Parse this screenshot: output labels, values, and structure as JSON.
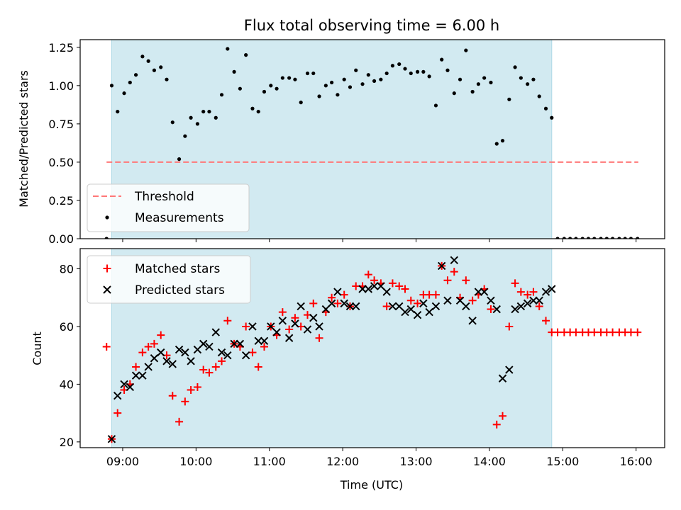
{
  "chart_data": {
    "title": "Flux total observing time = 6.00 h",
    "xlabel": "Time (UTC)",
    "x_ticks": [
      "09:00",
      "10:00",
      "11:00",
      "12:00",
      "13:00",
      "14:00",
      "15:00",
      "16:00"
    ],
    "x_range_hours": [
      8.42,
      16.39
    ],
    "shaded_interval_hours": [
      8.85,
      14.85
    ],
    "colors": {
      "shade": "#add8e6",
      "threshold": "#ff7777",
      "measurements": "#000000",
      "matched": "#ff0000",
      "predicted": "#000000"
    },
    "panels": [
      {
        "type": "scatter",
        "ylabel": "Matched/Predicted stars",
        "ylim": [
          0,
          1.3
        ],
        "y_ticks": [
          0.0,
          0.25,
          0.5,
          0.75,
          1.0,
          1.25
        ],
        "y_tick_labels": [
          "0.00",
          "0.25",
          "0.50",
          "0.75",
          "1.00",
          "1.25"
        ],
        "legend_position": "lower-left",
        "threshold": {
          "name": "Threshold",
          "y": 0.5,
          "x_start": 8.78,
          "x_end": 16.03
        },
        "measurements": {
          "name": "Measurements",
          "x": [
            8.78,
            8.85,
            8.93,
            9.02,
            9.1,
            9.18,
            9.27,
            9.35,
            9.43,
            9.52,
            9.6,
            9.68,
            9.77,
            9.85,
            9.93,
            10.02,
            10.1,
            10.18,
            10.27,
            10.35,
            10.43,
            10.52,
            10.6,
            10.68,
            10.77,
            10.85,
            10.93,
            11.02,
            11.1,
            11.18,
            11.27,
            11.35,
            11.43,
            11.52,
            11.6,
            11.68,
            11.77,
            11.85,
            11.93,
            12.02,
            12.1,
            12.18,
            12.27,
            12.35,
            12.43,
            12.52,
            12.6,
            12.68,
            12.77,
            12.85,
            12.93,
            13.02,
            13.1,
            13.18,
            13.27,
            13.35,
            13.43,
            13.52,
            13.6,
            13.68,
            13.77,
            13.85,
            13.93,
            14.02,
            14.1,
            14.18,
            14.27,
            14.35,
            14.43,
            14.52,
            14.6,
            14.68,
            14.77,
            14.85,
            14.93,
            15.02,
            15.1,
            15.18,
            15.27,
            15.35,
            15.43,
            15.52,
            15.6,
            15.68,
            15.77,
            15.85,
            15.93,
            16.02
          ],
          "y": [
            0.0,
            1.0,
            0.83,
            0.95,
            1.02,
            1.07,
            1.19,
            1.16,
            1.1,
            1.12,
            1.04,
            0.76,
            0.52,
            0.67,
            0.79,
            0.75,
            0.83,
            0.83,
            0.79,
            0.94,
            1.24,
            1.09,
            0.98,
            1.2,
            0.85,
            0.83,
            0.96,
            1.0,
            0.98,
            1.05,
            1.05,
            1.04,
            0.89,
            1.08,
            1.08,
            0.93,
            1.0,
            1.02,
            0.94,
            1.04,
            0.99,
            1.1,
            1.01,
            1.07,
            1.03,
            1.04,
            1.08,
            1.13,
            1.14,
            1.11,
            1.08,
            1.09,
            1.09,
            1.06,
            0.87,
            1.17,
            1.1,
            0.95,
            1.04,
            1.23,
            0.96,
            1.01,
            1.05,
            1.02,
            0.62,
            0.64,
            0.91,
            1.12,
            1.05,
            1.01,
            1.04,
            0.93,
            0.85,
            0.79,
            0.0,
            0.0,
            0.0,
            0.0,
            0.0,
            0.0,
            0.0,
            0.0,
            0.0,
            0.0,
            0.0,
            0.0,
            0.0,
            0.0
          ]
        }
      },
      {
        "type": "scatter",
        "ylabel": "Count",
        "ylim": [
          18,
          87
        ],
        "y_ticks": [
          20,
          40,
          60,
          80
        ],
        "y_tick_labels": [
          "20",
          "40",
          "60",
          "80"
        ],
        "legend_position": "upper-left",
        "series": [
          {
            "name": "Matched stars",
            "marker": "+",
            "x": [
              8.78,
              8.85,
              8.93,
              9.02,
              9.1,
              9.18,
              9.27,
              9.35,
              9.43,
              9.52,
              9.6,
              9.68,
              9.77,
              9.85,
              9.93,
              10.02,
              10.1,
              10.18,
              10.27,
              10.35,
              10.43,
              10.52,
              10.6,
              10.68,
              10.77,
              10.85,
              10.93,
              11.02,
              11.1,
              11.18,
              11.27,
              11.35,
              11.43,
              11.52,
              11.6,
              11.68,
              11.77,
              11.85,
              11.93,
              12.02,
              12.1,
              12.18,
              12.27,
              12.35,
              12.43,
              12.52,
              12.6,
              12.68,
              12.77,
              12.85,
              12.93,
              13.02,
              13.1,
              13.18,
              13.27,
              13.35,
              13.43,
              13.52,
              13.6,
              13.68,
              13.77,
              13.85,
              13.93,
              14.02,
              14.1,
              14.18,
              14.27,
              14.35,
              14.43,
              14.52,
              14.6,
              14.68,
              14.77,
              14.85,
              14.93,
              15.02,
              15.1,
              15.18,
              15.27,
              15.35,
              15.43,
              15.52,
              15.6,
              15.68,
              15.77,
              15.85,
              15.93,
              16.02
            ],
            "y": [
              53,
              21,
              30,
              38,
              40,
              46,
              51,
              53,
              54,
              57,
              50,
              36,
              27,
              34,
              38,
              39,
              45,
              44,
              46,
              48,
              62,
              54,
              53,
              60,
              51,
              46,
              53,
              60,
              57,
              65,
              59,
              63,
              60,
              64,
              68,
              56,
              65,
              70,
              68,
              71,
              67,
              74,
              74,
              78,
              76,
              75,
              67,
              75,
              74,
              73,
              69,
              68,
              71,
              71,
              71,
              81,
              76,
              79,
              70,
              76,
              69,
              71,
              73,
              66,
              26,
              29,
              60,
              75,
              72,
              71,
              72,
              67,
              62,
              58,
              58,
              58,
              58,
              58,
              58,
              58,
              58,
              58,
              58,
              58,
              58,
              58,
              58,
              58
            ]
          },
          {
            "name": "Predicted stars",
            "marker": "x",
            "x": [
              8.85,
              8.93,
              9.02,
              9.1,
              9.18,
              9.27,
              9.35,
              9.43,
              9.52,
              9.6,
              9.68,
              9.77,
              9.85,
              9.93,
              10.02,
              10.1,
              10.18,
              10.27,
              10.35,
              10.43,
              10.52,
              10.6,
              10.68,
              10.77,
              10.85,
              10.93,
              11.02,
              11.1,
              11.18,
              11.27,
              11.35,
              11.43,
              11.52,
              11.6,
              11.68,
              11.77,
              11.85,
              11.93,
              12.02,
              12.1,
              12.18,
              12.27,
              12.35,
              12.43,
              12.52,
              12.6,
              12.68,
              12.77,
              12.85,
              12.93,
              13.02,
              13.1,
              13.18,
              13.27,
              13.35,
              13.43,
              13.52,
              13.6,
              13.68,
              13.77,
              13.85,
              13.93,
              14.02,
              14.1,
              14.18,
              14.27,
              14.35,
              14.43,
              14.52,
              14.6,
              14.68,
              14.77,
              14.85
            ],
            "y": [
              21,
              36,
              40,
              39,
              43,
              43,
              46,
              49,
              51,
              48,
              47,
              52,
              51,
              48,
              52,
              54,
              53,
              58,
              51,
              50,
              54,
              54,
              50,
              60,
              55,
              55,
              60,
              58,
              62,
              56,
              61,
              67,
              59,
              63,
              60,
              66,
              68,
              72,
              68,
              67,
              67,
              73,
              73,
              74,
              74,
              72,
              67,
              67,
              65,
              66,
              64,
              68,
              65,
              67,
              81,
              69,
              83,
              69,
              67,
              62,
              72,
              72,
              69,
              66,
              42,
              45,
              66,
              67,
              68,
              69,
              69,
              72,
              73
            ]
          }
        ]
      }
    ]
  }
}
